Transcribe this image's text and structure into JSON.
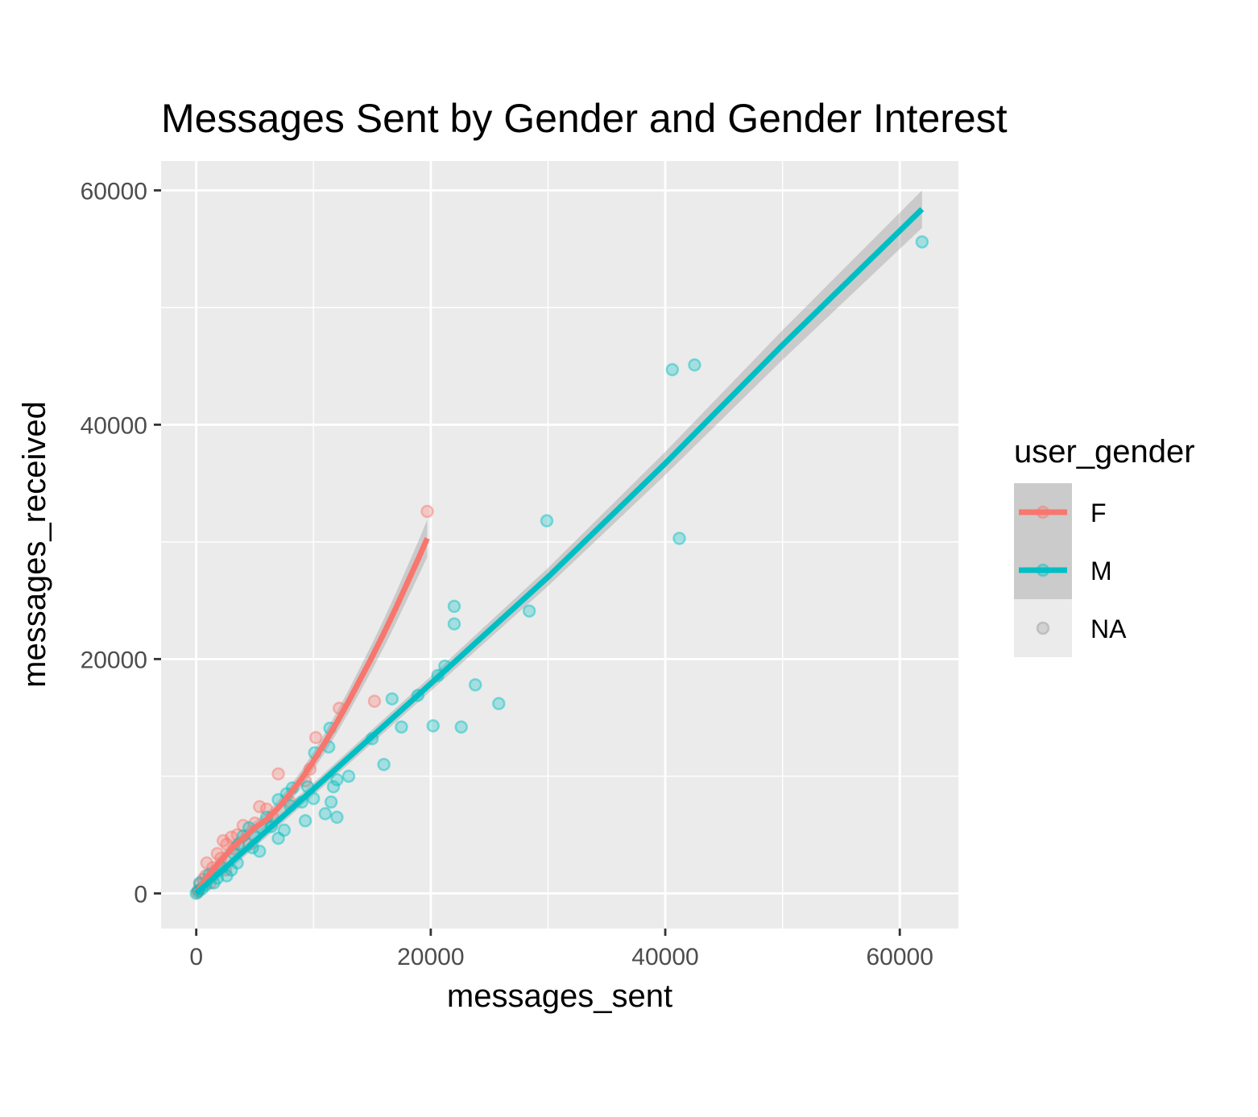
{
  "chart_data": {
    "type": "scatter",
    "title": "Messages Sent by Gender and Gender Interest",
    "xlabel": "messages_sent",
    "ylabel": "messages_received",
    "xlim": [
      -3000,
      65000
    ],
    "ylim": [
      -3000,
      62500
    ],
    "x_ticks": [
      0,
      20000,
      40000,
      60000
    ],
    "x_tick_labels": [
      "0",
      "20000",
      "40000",
      "60000"
    ],
    "y_ticks": [
      0,
      20000,
      40000,
      60000
    ],
    "y_tick_labels": [
      "0",
      "20000",
      "40000",
      "60000"
    ],
    "x_minor": [
      10000,
      30000,
      50000
    ],
    "y_minor": [
      10000,
      30000,
      50000
    ],
    "grid": true,
    "legend": {
      "title": "user_gender",
      "placement": "right",
      "entries": [
        "F",
        "M",
        "NA"
      ]
    },
    "colors": {
      "F": "#F8766D",
      "M": "#00BFC4",
      "NA": "#999999",
      "panel": "#EBEBEB",
      "ribbon": "#999999"
    },
    "series": [
      {
        "name": "F",
        "points": [
          [
            19700,
            32600
          ],
          [
            15200,
            16400
          ],
          [
            12200,
            15800
          ],
          [
            10200,
            13300
          ],
          [
            9700,
            10600
          ],
          [
            9300,
            9600
          ],
          [
            7000,
            10200
          ],
          [
            5400,
            7400
          ],
          [
            6000,
            7200
          ],
          [
            5000,
            6000
          ],
          [
            4000,
            5800
          ],
          [
            3500,
            5000
          ],
          [
            2300,
            4500
          ],
          [
            2600,
            4200
          ],
          [
            3200,
            3800
          ],
          [
            1800,
            3400
          ],
          [
            2100,
            3000
          ],
          [
            900,
            2600
          ],
          [
            1400,
            2200
          ],
          [
            800,
            1500
          ],
          [
            600,
            1200
          ],
          [
            300,
            800
          ],
          [
            1200,
            900
          ],
          [
            2500,
            2000
          ],
          [
            4500,
            4200
          ],
          [
            6500,
            6500
          ],
          [
            8000,
            7800
          ],
          [
            3000,
            4800
          ],
          [
            200,
            300
          ],
          [
            100,
            100
          ]
        ],
        "fit": [
          [
            0,
            0
          ],
          [
            1000,
            1500
          ],
          [
            2000,
            2700
          ],
          [
            3000,
            3800
          ],
          [
            4000,
            4700
          ],
          [
            5000,
            5600
          ],
          [
            6000,
            6300
          ],
          [
            7000,
            7300
          ],
          [
            8000,
            8500
          ],
          [
            9000,
            9800
          ],
          [
            10000,
            11300
          ],
          [
            11000,
            12900
          ],
          [
            12000,
            14600
          ],
          [
            13000,
            16400
          ],
          [
            14000,
            18300
          ],
          [
            15000,
            20200
          ],
          [
            16000,
            22200
          ],
          [
            17000,
            24300
          ],
          [
            18000,
            26500
          ],
          [
            19000,
            28700
          ],
          [
            19700,
            30300
          ]
        ]
      },
      {
        "name": "M",
        "points": [
          [
            61900,
            55600
          ],
          [
            42500,
            45100
          ],
          [
            40600,
            44700
          ],
          [
            41200,
            30300
          ],
          [
            29900,
            31800
          ],
          [
            22000,
            24500
          ],
          [
            22000,
            23000
          ],
          [
            28400,
            24100
          ],
          [
            23800,
            17800
          ],
          [
            25800,
            16200
          ],
          [
            20600,
            18600
          ],
          [
            21200,
            19400
          ],
          [
            18900,
            16900
          ],
          [
            16700,
            16600
          ],
          [
            17500,
            14200
          ],
          [
            20200,
            14300
          ],
          [
            22600,
            14200
          ],
          [
            15000,
            13200
          ],
          [
            16000,
            11000
          ],
          [
            11300,
            12500
          ],
          [
            11400,
            14100
          ],
          [
            10100,
            12000
          ],
          [
            13000,
            10000
          ],
          [
            11700,
            9100
          ],
          [
            12000,
            9700
          ],
          [
            11500,
            7800
          ],
          [
            11000,
            6800
          ],
          [
            12000,
            6500
          ],
          [
            9500,
            9100
          ],
          [
            9000,
            7800
          ],
          [
            10000,
            8100
          ],
          [
            9300,
            6200
          ],
          [
            8200,
            9000
          ],
          [
            7700,
            8500
          ],
          [
            8000,
            7500
          ],
          [
            7000,
            8000
          ],
          [
            7500,
            5400
          ],
          [
            7000,
            4700
          ],
          [
            6400,
            5700
          ],
          [
            6000,
            6500
          ],
          [
            5600,
            5600
          ],
          [
            5000,
            4800
          ],
          [
            5400,
            3600
          ],
          [
            4800,
            3900
          ],
          [
            4500,
            5600
          ],
          [
            4000,
            4900
          ],
          [
            3600,
            4200
          ],
          [
            3200,
            3400
          ],
          [
            3500,
            2600
          ],
          [
            3000,
            2000
          ],
          [
            2600,
            1500
          ],
          [
            2200,
            2200
          ],
          [
            1800,
            1300
          ],
          [
            1500,
            900
          ],
          [
            1100,
            1600
          ],
          [
            800,
            700
          ],
          [
            500,
            400
          ],
          [
            300,
            900
          ],
          [
            200,
            200
          ],
          [
            0,
            0
          ]
        ],
        "fit": [
          [
            0,
            0
          ],
          [
            10000,
            8900
          ],
          [
            20000,
            17900
          ],
          [
            30000,
            27000
          ],
          [
            40000,
            36700
          ],
          [
            50000,
            46800
          ],
          [
            61900,
            58400
          ]
        ]
      },
      {
        "name": "NA",
        "points": []
      }
    ]
  }
}
